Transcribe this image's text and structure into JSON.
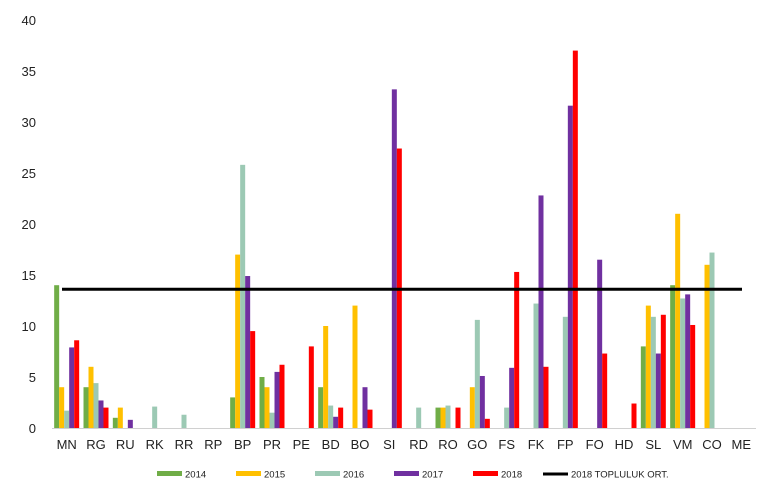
{
  "chart_data": {
    "type": "bar",
    "categories": [
      "MN",
      "RG",
      "RU",
      "RK",
      "RR",
      "RP",
      "BP",
      "PR",
      "PE",
      "BD",
      "BO",
      "SI",
      "RD",
      "RO",
      "GO",
      "FS",
      "FK",
      "FP",
      "FO",
      "HD",
      "SL",
      "VM",
      "CO",
      "ME"
    ],
    "series": [
      {
        "name": "2014",
        "color": "#70ad47",
        "values": [
          14,
          4,
          1,
          0,
          0,
          0,
          3,
          5,
          0,
          4,
          0,
          0,
          0,
          2,
          0,
          0,
          0,
          0,
          0,
          0,
          8,
          14,
          0,
          0
        ]
      },
      {
        "name": "2015",
        "color": "#ffc000",
        "values": [
          4,
          6,
          2,
          0,
          0,
          0,
          17,
          4,
          0,
          10,
          12,
          0,
          0,
          2,
          4,
          0,
          0,
          0,
          0,
          0,
          12,
          21,
          16,
          0
        ]
      },
      {
        "name": "2016",
        "color": "#9cc9b4",
        "values": [
          1.7,
          4.4,
          0,
          2.1,
          1.3,
          0,
          25.8,
          1.5,
          0,
          2.2,
          0,
          0,
          2,
          2.2,
          10.6,
          2,
          12.2,
          10.9,
          0,
          0,
          10.9,
          12.7,
          17.2,
          0
        ]
      },
      {
        "name": "2017",
        "color": "#7030a0",
        "values": [
          7.9,
          2.7,
          0.8,
          0,
          0,
          0,
          14.9,
          5.5,
          0,
          1.1,
          4,
          33.2,
          0,
          0,
          5.1,
          5.9,
          22.8,
          31.6,
          16.5,
          0,
          7.3,
          13.1,
          0,
          0
        ]
      },
      {
        "name": "2018",
        "color": "#ff0000",
        "values": [
          8.6,
          2,
          0,
          0,
          0,
          0,
          9.5,
          6.2,
          8,
          2,
          1.8,
          27.4,
          0,
          2,
          0.9,
          15.3,
          6,
          37,
          7.3,
          2.4,
          11.1,
          10.1,
          0,
          0
        ]
      }
    ],
    "reference_line": {
      "name": "2018 TOPLULUK ORT.",
      "value": 13.6,
      "color": "#000000"
    },
    "ylim": [
      0,
      40
    ],
    "yticks": [
      "0",
      "5",
      "10",
      "15",
      "20",
      "25",
      "30",
      "35",
      "40"
    ],
    "grid": false,
    "legend_position": "bottom",
    "title": "",
    "xlabel": "",
    "ylabel": ""
  }
}
